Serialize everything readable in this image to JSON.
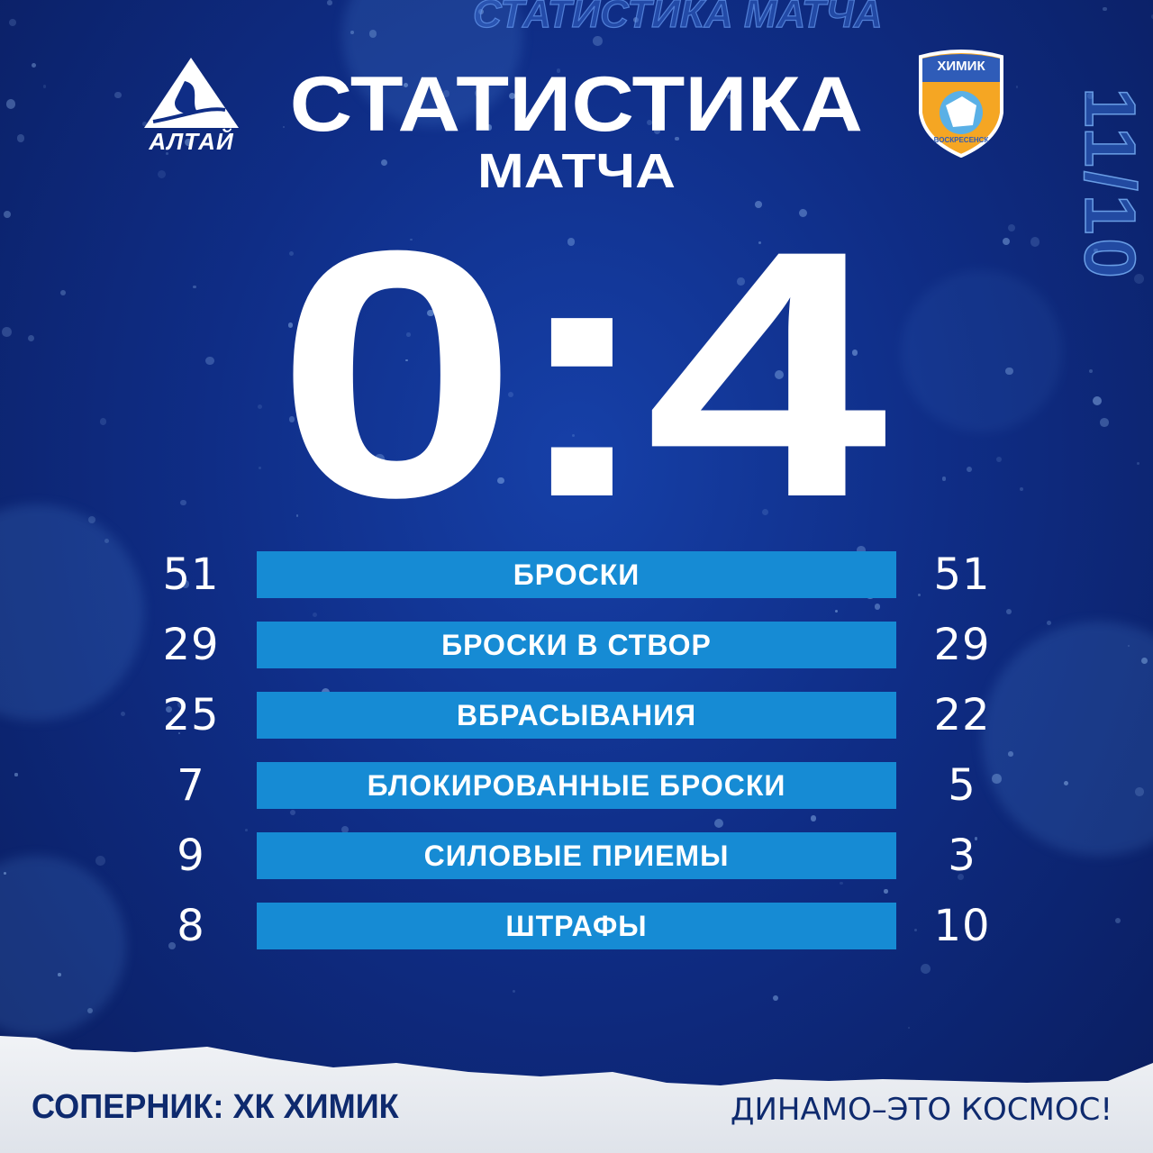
{
  "header": {
    "title": "СТАТИСТИКА",
    "subtitle": "МАТЧА",
    "watermark": "СТАТИСТИКА МАТЧА",
    "date": "11/10"
  },
  "teams": {
    "home_logo_text": "АЛТАЙ",
    "away_logo_text": "ХИМИК",
    "away_logo_city": "ВОСКРЕСЕНСК"
  },
  "score": {
    "home": "0",
    "separator": ":",
    "away": "4"
  },
  "stats": [
    {
      "label": "БРОСКИ",
      "home": "51",
      "away": "51"
    },
    {
      "label": "БРОСКИ В СТВОР",
      "home": "29",
      "away": "29"
    },
    {
      "label": "ВБРАСЫВАНИЯ",
      "home": "25",
      "away": "22"
    },
    {
      "label": "БЛОКИРОВАННЫЕ БРОСКИ",
      "home": "7",
      "away": "5"
    },
    {
      "label": "СИЛОВЫЕ ПРИЕМЫ",
      "home": "9",
      "away": "3"
    },
    {
      "label": "ШТРАФЫ",
      "home": "8",
      "away": "10"
    }
  ],
  "footer": {
    "opponent": "СОПЕРНИК: ХК ХИМИК",
    "slogan": "ДИНАМО–ЭТО КОСМОС!"
  },
  "colors": {
    "background": "#0f2d86",
    "bar": "#168bd4",
    "footer_text": "#0e2a6e",
    "away_logo": "#f5a623"
  }
}
